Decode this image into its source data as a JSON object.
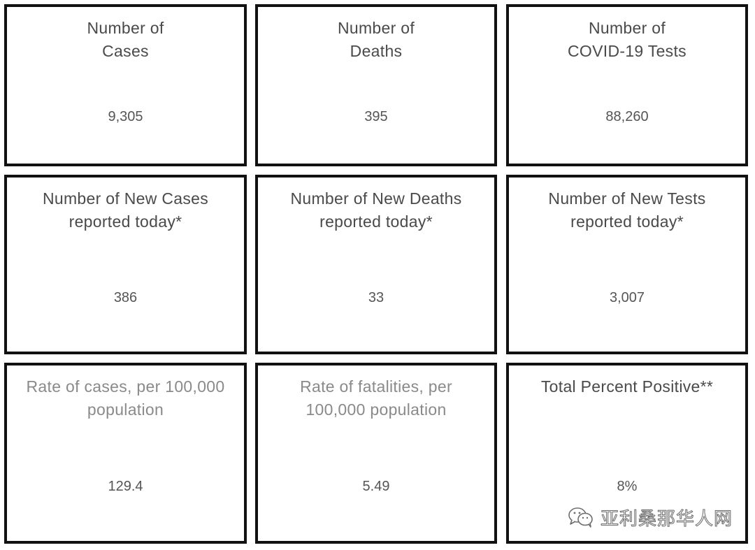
{
  "colors": {
    "border": "#111111",
    "title_dark": "#4a4a4a",
    "title_muted": "#8a8a8a",
    "value": "#555555"
  },
  "tiles": [
    {
      "title": "Number of\nCases",
      "value": "9,305",
      "title_style": "dark"
    },
    {
      "title": "Number of\nDeaths",
      "value": "395",
      "title_style": "dark"
    },
    {
      "title": "Number of\nCOVID-19 Tests",
      "value": "88,260",
      "title_style": "dark"
    },
    {
      "title": "Number of New Cases\nreported today*",
      "value": "386",
      "title_style": "dark"
    },
    {
      "title": "Number of New Deaths\nreported today*",
      "value": "33",
      "title_style": "dark"
    },
    {
      "title": "Number of New Tests\nreported today*",
      "value": "3,007",
      "title_style": "dark"
    },
    {
      "title": "Rate of cases, per 100,000\npopulation",
      "value": "129.4",
      "title_style": "muted"
    },
    {
      "title": "Rate of fatalities, per\n100,000 population",
      "value": "5.49",
      "title_style": "muted"
    },
    {
      "title": "Total Percent Positive**",
      "value": "8%",
      "title_style": "dark"
    }
  ],
  "watermark": {
    "icon": "wechat-icon",
    "text": "亚利桑那华人网"
  }
}
